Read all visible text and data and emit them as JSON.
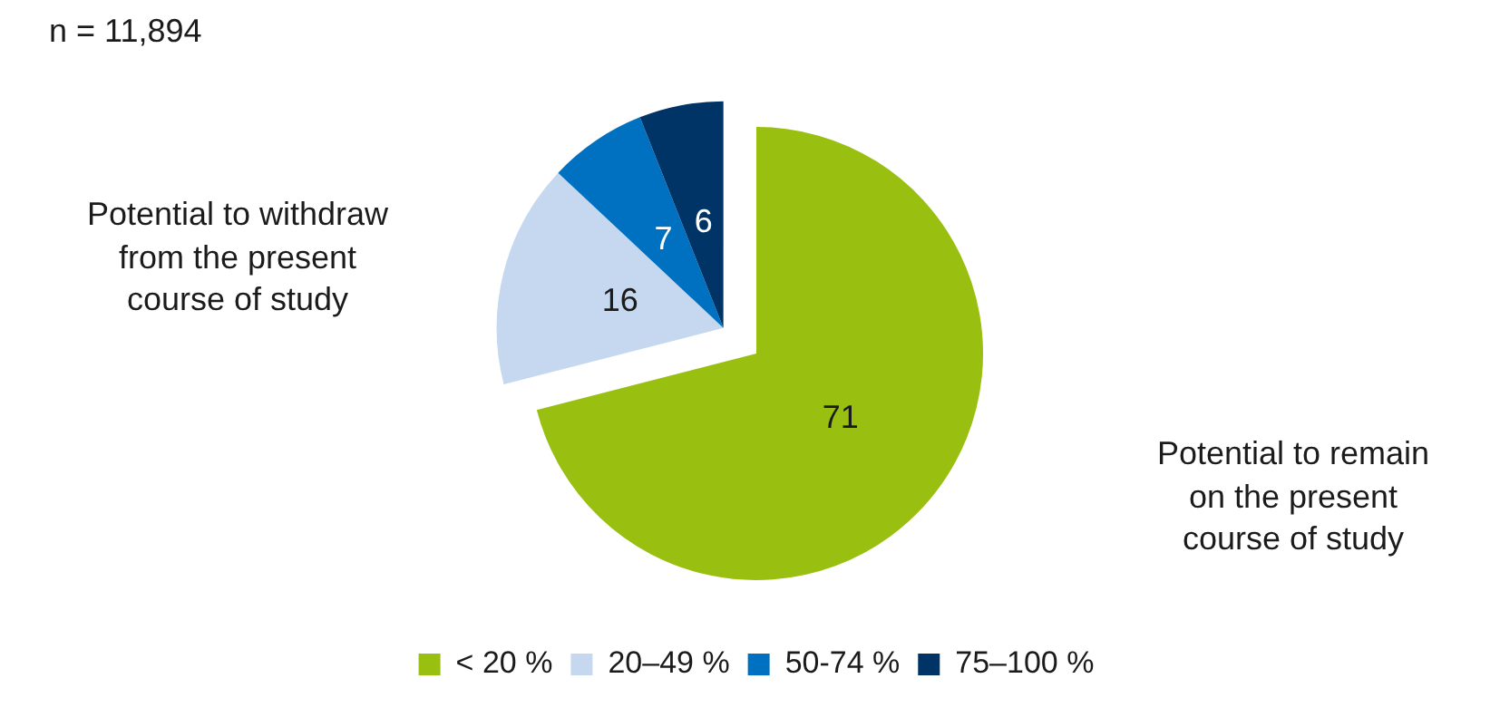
{
  "chart_data": {
    "type": "pie",
    "categories": [
      "< 20 %",
      "20–49 %",
      "50-74 %",
      "75–100 %"
    ],
    "values": [
      71,
      16,
      7,
      6
    ],
    "colors": [
      "#99bf10",
      "#c5d8ef",
      "#0070c0",
      "#003366"
    ],
    "data_labels": true,
    "legend": "bottom",
    "annotations": [
      "n = 11,894",
      "Potential to withdraw\nfrom the present\ncourse of study",
      "Potential to remain\non the present\ncourse of study"
    ]
  }
}
